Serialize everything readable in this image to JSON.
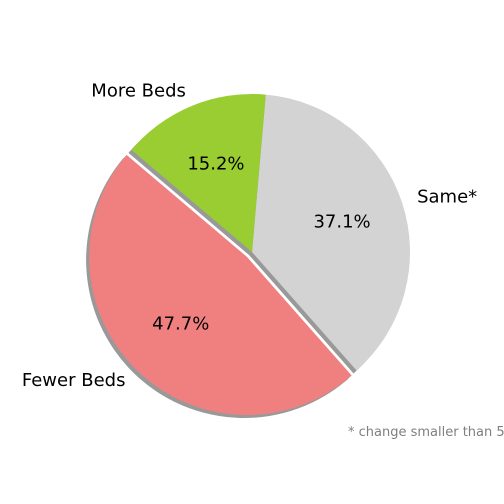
{
  "chart_data": {
    "type": "pie",
    "title": "",
    "slices": [
      {
        "label": "Same*",
        "value": 37.1,
        "pct_label": "37.1%",
        "color": "#d3d3d3",
        "exploded": false
      },
      {
        "label": "Fewer Beds",
        "value": 47.7,
        "pct_label": "47.7%",
        "color": "#f08080",
        "exploded": true
      },
      {
        "label": "More Beds",
        "value": 15.2,
        "pct_label": "15.2%",
        "color": "#9acd32",
        "exploded": false
      }
    ],
    "start_angle_deg": 85,
    "direction": "clockwise",
    "shadow": true,
    "footnote": "* change smaller than 5"
  }
}
